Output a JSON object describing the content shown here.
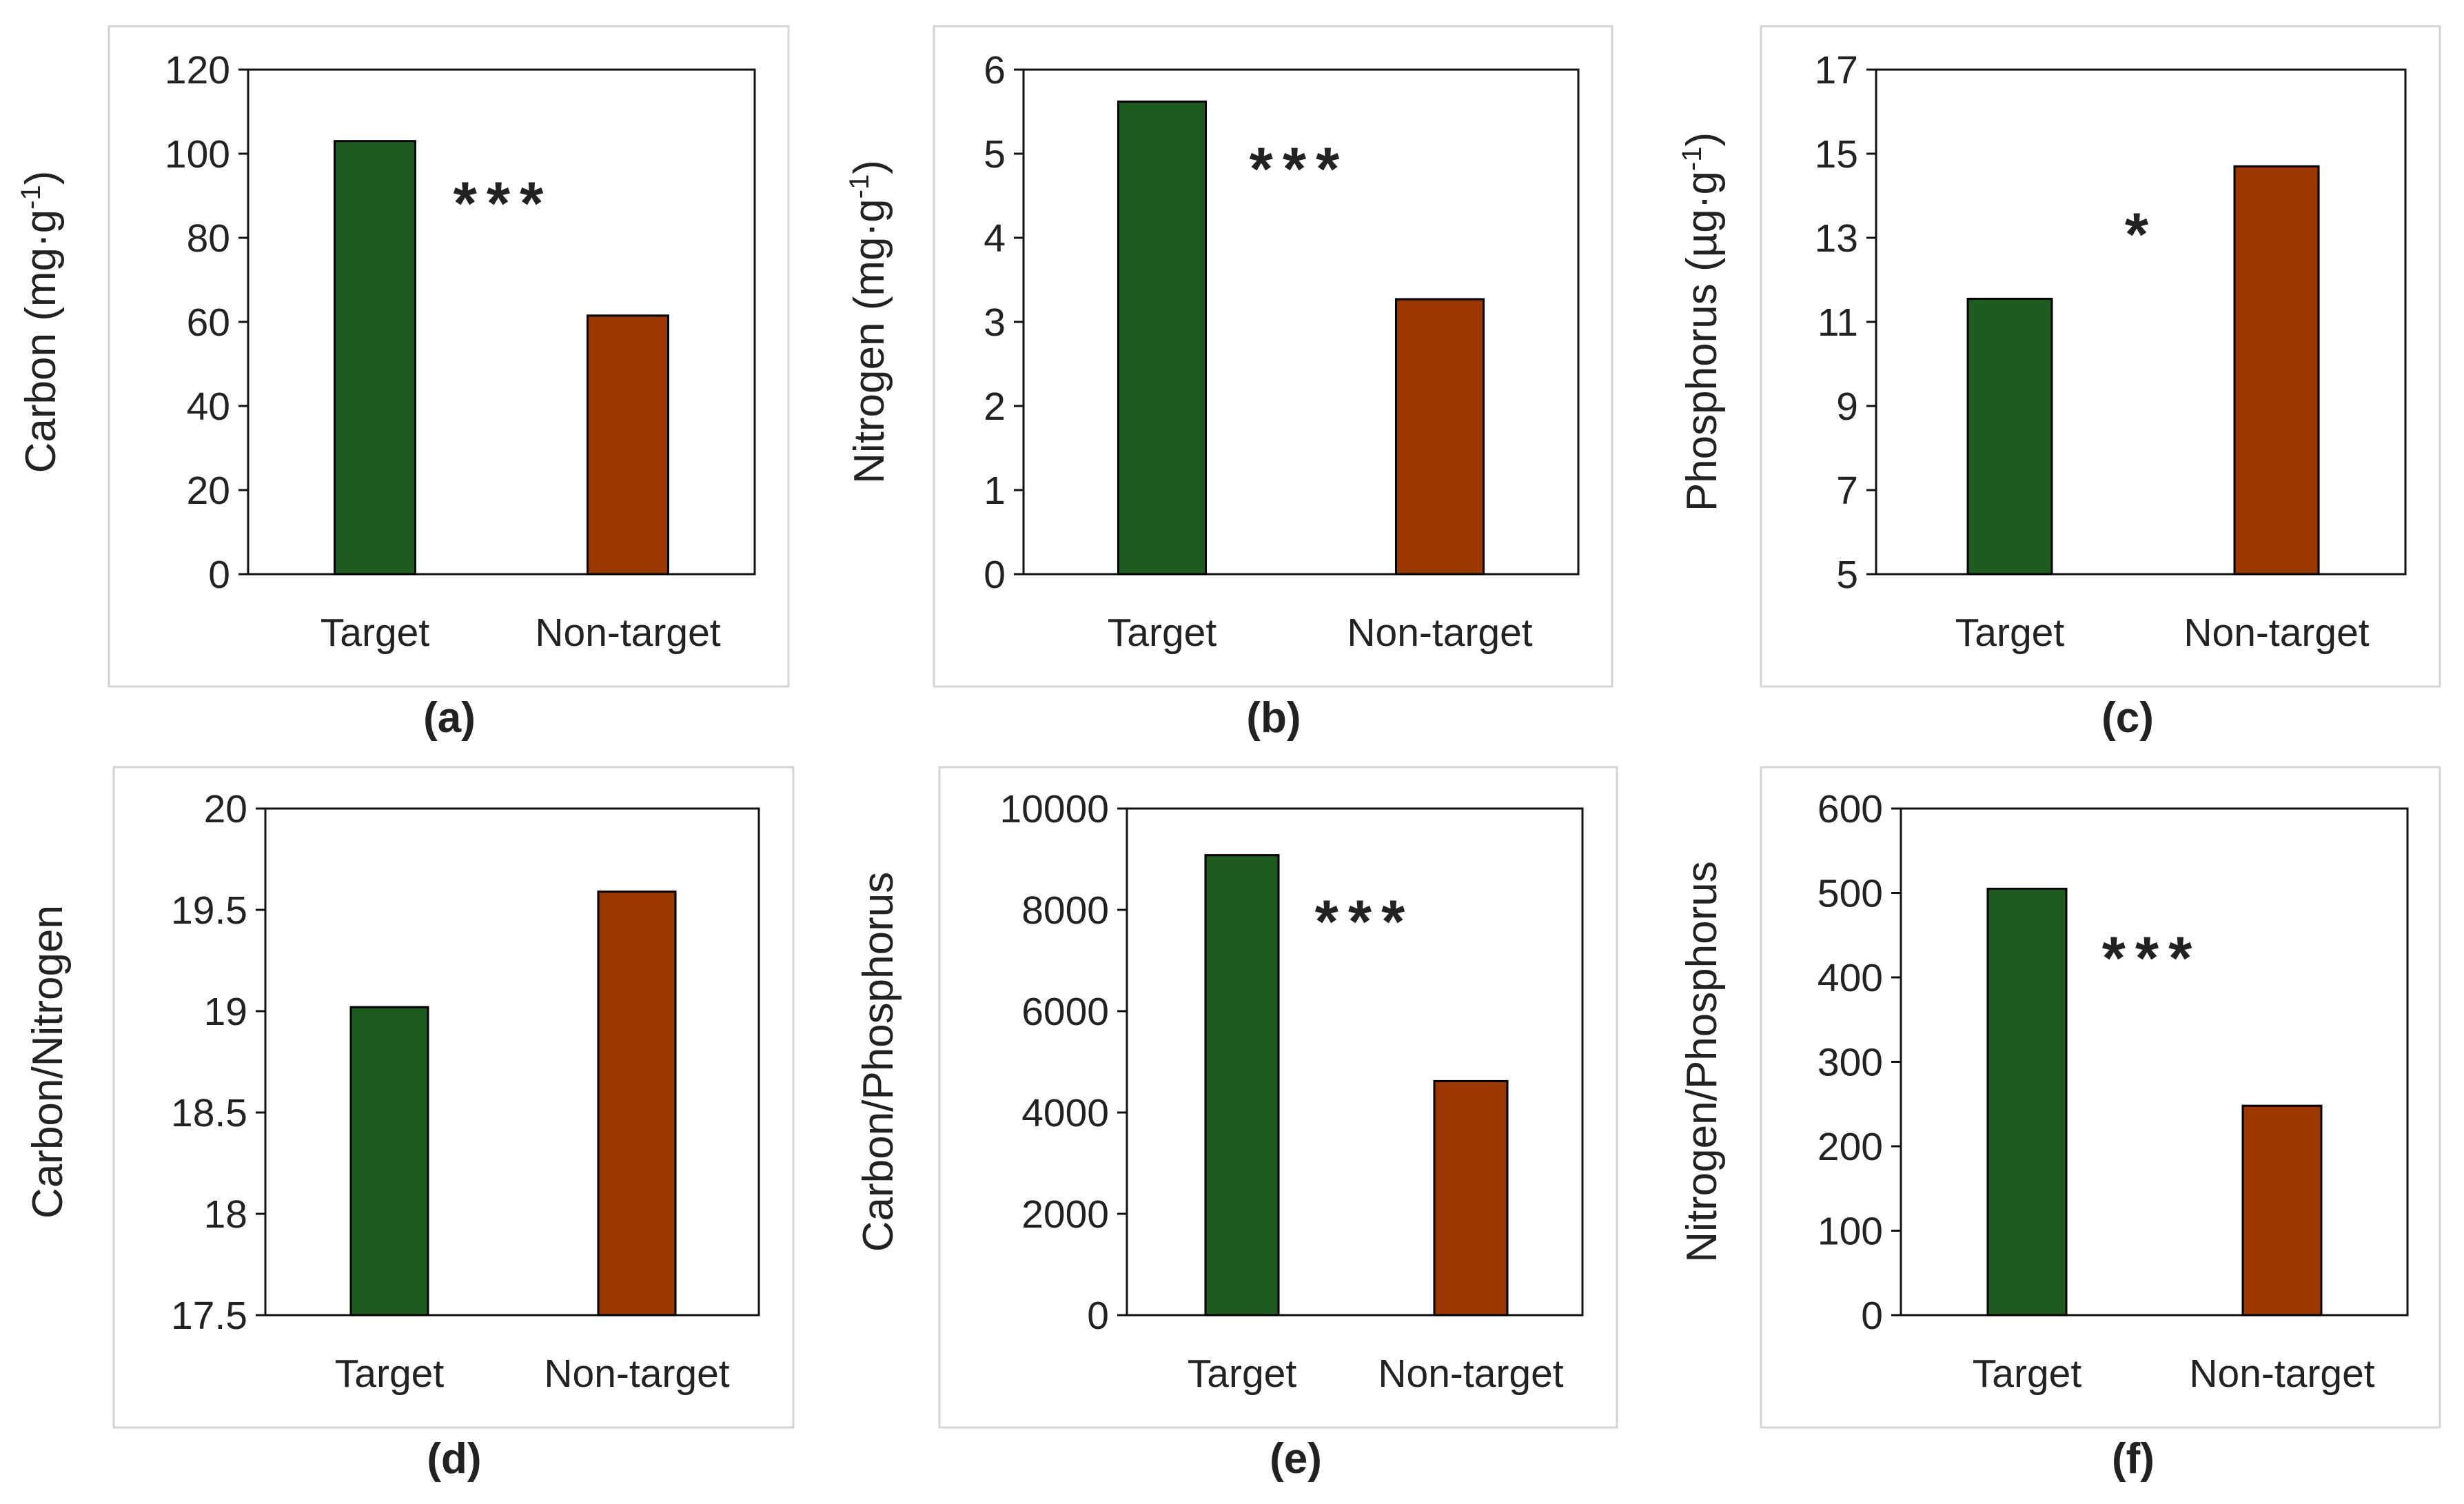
{
  "colors": {
    "target": "#1f5a1f",
    "nontarget": "#9a3800",
    "frame": "#d4d4d4",
    "axis": "#111111"
  },
  "chart_data": [
    {
      "type": "bar",
      "caption": "(a)",
      "ylabel": "Carbon (mg·g⁻¹)",
      "categories": [
        "Target",
        "Non-target"
      ],
      "values": [
        103,
        61.5
      ],
      "ylim": [
        0,
        120
      ],
      "yticks": [
        "0",
        "20",
        "40",
        "60",
        "80",
        "100",
        "120"
      ],
      "significance": "***"
    },
    {
      "type": "bar",
      "caption": "(b)",
      "ylabel": "Nitrogen (mg·g⁻¹)",
      "categories": [
        "Target",
        "Non-target"
      ],
      "values": [
        5.62,
        3.27
      ],
      "ylim": [
        0,
        6
      ],
      "yticks": [
        "0",
        "1",
        "2",
        "3",
        "4",
        "5",
        "6"
      ],
      "significance": "***"
    },
    {
      "type": "bar",
      "caption": "(c)",
      "ylabel": "Phosphorus (µg·g⁻¹)",
      "categories": [
        "Target",
        "Non-target"
      ],
      "values": [
        11.55,
        14.7
      ],
      "ylim": [
        5,
        17
      ],
      "yticks": [
        "5",
        "7",
        "9",
        "11",
        "13",
        "15",
        "17"
      ],
      "significance": "*"
    },
    {
      "type": "bar",
      "caption": "(d)",
      "ylabel": "Carbon/Nitrogen",
      "categories": [
        "Target",
        "Non-target"
      ],
      "values": [
        19.02,
        19.59
      ],
      "ylim": [
        17.5,
        20
      ],
      "yticks": [
        "17.5",
        "18",
        "18.5",
        "19",
        "19.5",
        "20"
      ],
      "significance": ""
    },
    {
      "type": "bar",
      "caption": "(e)",
      "ylabel": "Carbon/Phosphorus",
      "categories": [
        "Target",
        "Non-target"
      ],
      "values": [
        9080,
        4620
      ],
      "ylim": [
        0,
        10000
      ],
      "yticks": [
        "0",
        "2000",
        "4000",
        "6000",
        "8000",
        "10000"
      ],
      "significance": "***"
    },
    {
      "type": "bar",
      "caption": "(f)",
      "ylabel": "Nitrogen/Phosphorus",
      "categories": [
        "Target",
        "Non-target"
      ],
      "values": [
        505,
        248
      ],
      "ylim": [
        0,
        600
      ],
      "yticks": [
        "0",
        "100",
        "200",
        "300",
        "400",
        "500",
        "600"
      ],
      "significance": "***"
    }
  ]
}
